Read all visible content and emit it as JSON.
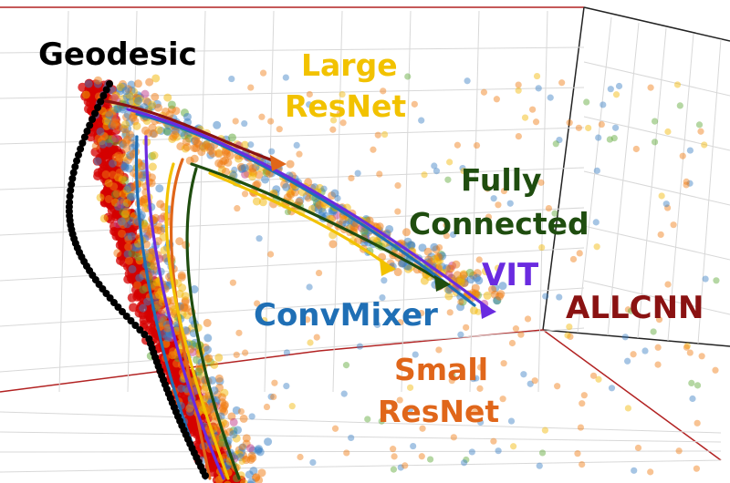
{
  "chart_data": {
    "type": "scatter",
    "projection": "3d",
    "title": "",
    "xlabel": "",
    "ylabel": "",
    "zlabel": "",
    "grid": true,
    "series": [
      {
        "name": "Geodesic",
        "color": "#000000",
        "style": "dotted-trajectory"
      },
      {
        "name": "Large ResNet",
        "color": "#f2c200",
        "style": "trajectory"
      },
      {
        "name": "Fully Connected",
        "color": "#1f4d0f",
        "style": "trajectory"
      },
      {
        "name": "VIT",
        "color": "#6a2be0",
        "style": "trajectory"
      },
      {
        "name": "ConvMixer",
        "color": "#1f6fb5",
        "style": "trajectory"
      },
      {
        "name": "ALLCNN",
        "color": "#8a1212",
        "style": "trajectory"
      },
      {
        "name": "Small ResNet",
        "color": "#e0661a",
        "style": "trajectory"
      }
    ],
    "point_colors": [
      "#d40000",
      "#f07a10",
      "#f2b500",
      "#3a7fc4",
      "#5aa632",
      "#c23a8a"
    ]
  }
}
